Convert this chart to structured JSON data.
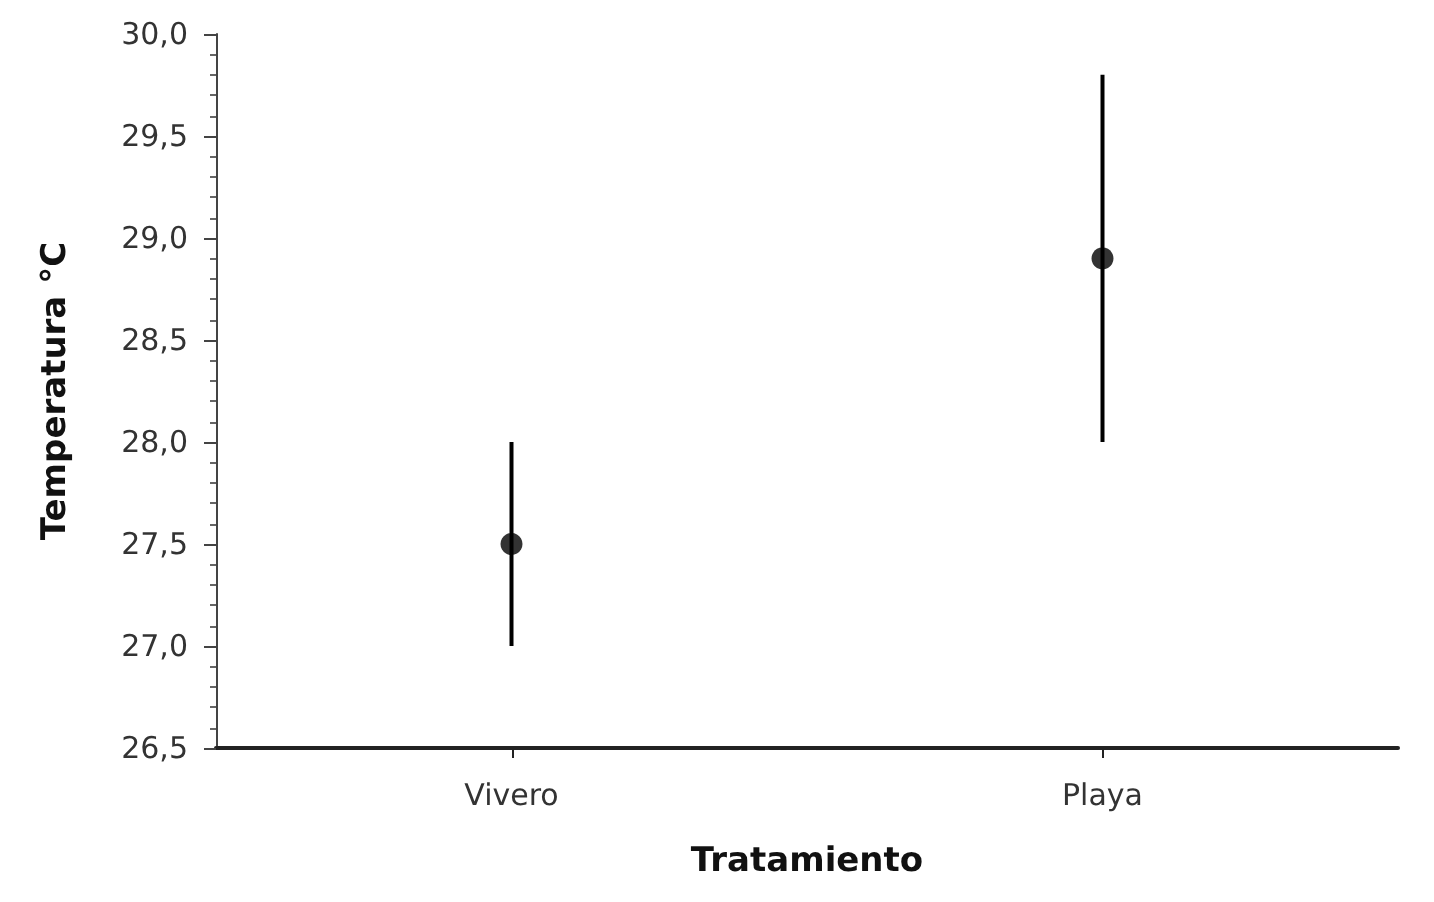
{
  "chart_data": {
    "type": "scatter",
    "xlabel": "Tratamiento",
    "ylabel": "Temperatura °C",
    "categories": [
      "Vivero",
      "Playa"
    ],
    "series": [
      {
        "color": "#000000",
        "values": [
          27.5,
          28.9
        ],
        "errors": [
          [
            27.0,
            28.0
          ],
          [
            28.0,
            29.8
          ]
        ]
      }
    ],
    "ylim": [
      26.5,
      30.0
    ],
    "yticks": [
      {
        "value": 26.5,
        "label": "26,5"
      },
      {
        "value": 27.0,
        "label": "27,0"
      },
      {
        "value": 27.5,
        "label": "27,5"
      },
      {
        "value": 28.0,
        "label": "28,0"
      },
      {
        "value": 28.5,
        "label": "28,5"
      },
      {
        "value": 29.0,
        "label": "29,0"
      },
      {
        "value": 29.5,
        "label": "29,5"
      },
      {
        "value": 30.0,
        "label": "30,0"
      }
    ],
    "grid": false,
    "marker": "circle"
  }
}
